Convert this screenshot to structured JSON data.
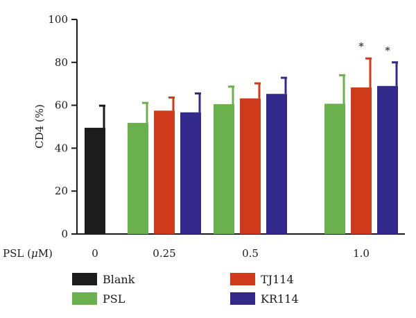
{
  "chart_data": {
    "type": "bar",
    "ylabel": "CD4 (%)",
    "xlabel": "PSL (μM)",
    "xlabel_parts": [
      "PSL (",
      "μ",
      "M)"
    ],
    "ylim": [
      0,
      100
    ],
    "yticks": [
      0,
      20,
      40,
      60,
      80,
      100
    ],
    "categories": [
      "0",
      "0.25",
      "0.5",
      "1.0"
    ],
    "series": [
      {
        "name": "Blank",
        "color": "#1c1c1c",
        "values": [
          49.5,
          null,
          null,
          null
        ],
        "errors": [
          10.3,
          null,
          null,
          null
        ]
      },
      {
        "name": "PSL",
        "color": "#6ab04c",
        "values": [
          null,
          51.8,
          60.5,
          60.7
        ],
        "errors": [
          null,
          9.3,
          8.2,
          13.3
        ]
      },
      {
        "name": "TJ114",
        "color": "#cf3a1b",
        "values": [
          null,
          57.5,
          63.2,
          68.3
        ],
        "errors": [
          null,
          6.1,
          7.0,
          13.5
        ]
      },
      {
        "name": "KR114",
        "color": "#33298a",
        "values": [
          null,
          56.7,
          65.3,
          69.0
        ],
        "errors": [
          null,
          8.8,
          7.5,
          11.0
        ]
      }
    ],
    "annotations": [
      {
        "category": "1.0",
        "series": "TJ114",
        "text": "*"
      },
      {
        "category": "1.0",
        "series": "KR114",
        "text": "*"
      }
    ],
    "grid": false,
    "legend_position": "bottom"
  }
}
